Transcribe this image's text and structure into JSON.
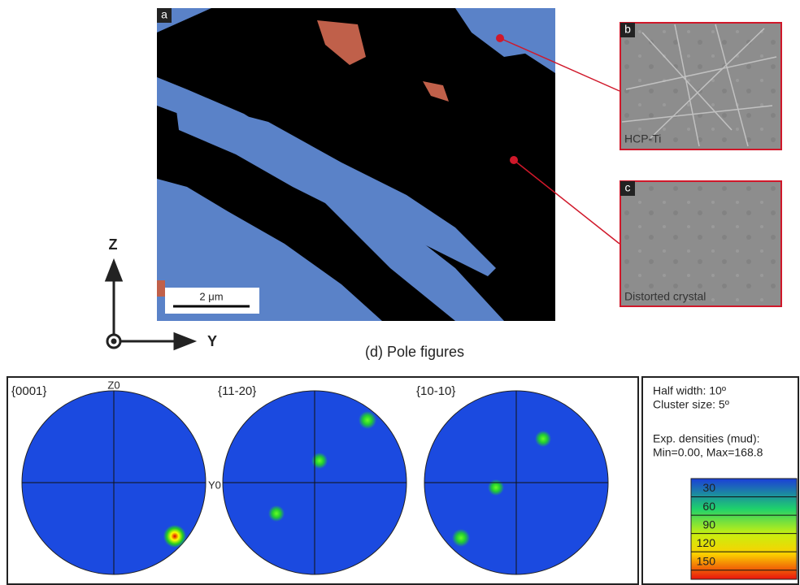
{
  "map": {
    "label": "a",
    "scalebar": "2 μm"
  },
  "patterns": [
    {
      "label": "b",
      "caption": "HCP-Ti"
    },
    {
      "label": "c",
      "caption": "Distorted crystal"
    }
  ],
  "axes": {
    "vertical": "Z",
    "horizontal": "Y"
  },
  "pole_figures": {
    "title": "(d) Pole figures",
    "figures": [
      {
        "label": "{0001}",
        "top": "Z0",
        "right": "Y0"
      },
      {
        "label": "{11-20}"
      },
      {
        "label": "{10-10}"
      }
    ],
    "info": [
      "Half width: 10º",
      "Cluster size: 5º",
      "Exp. densities (mud):",
      "Min=0.00, Max=168.8"
    ],
    "colorbar": [
      30,
      60,
      90,
      120,
      150
    ]
  }
}
